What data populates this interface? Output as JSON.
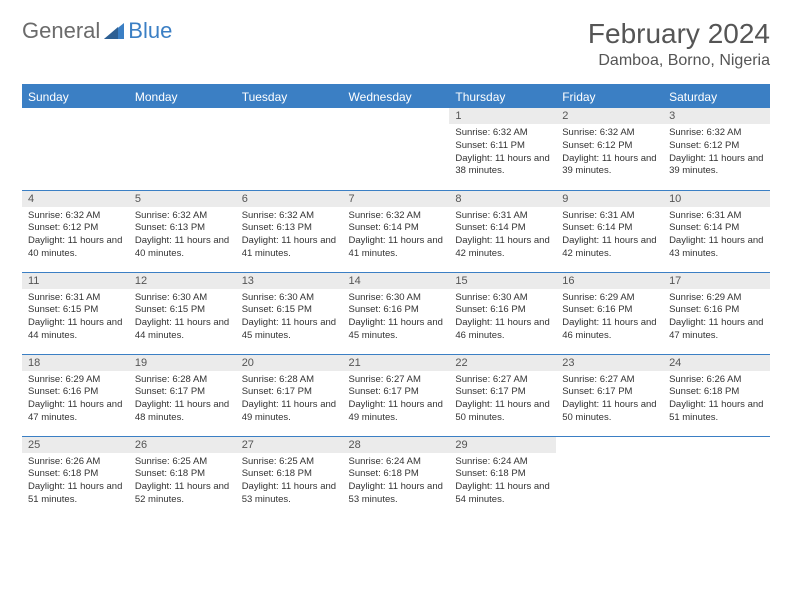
{
  "brand": {
    "part1": "General",
    "part2": "Blue"
  },
  "title": "February 2024",
  "location": "Damboa, Borno, Nigeria",
  "colors": {
    "accent": "#3b7fc4",
    "header_text": "#ffffff",
    "daynum_bg": "#ebebeb",
    "body_text": "#333333",
    "title_text": "#555555"
  },
  "weekdays": [
    "Sunday",
    "Monday",
    "Tuesday",
    "Wednesday",
    "Thursday",
    "Friday",
    "Saturday"
  ],
  "first_weekday_index": 4,
  "days": [
    {
      "n": 1,
      "sunrise": "6:32 AM",
      "sunset": "6:11 PM",
      "daylight": "11 hours and 38 minutes."
    },
    {
      "n": 2,
      "sunrise": "6:32 AM",
      "sunset": "6:12 PM",
      "daylight": "11 hours and 39 minutes."
    },
    {
      "n": 3,
      "sunrise": "6:32 AM",
      "sunset": "6:12 PM",
      "daylight": "11 hours and 39 minutes."
    },
    {
      "n": 4,
      "sunrise": "6:32 AM",
      "sunset": "6:12 PM",
      "daylight": "11 hours and 40 minutes."
    },
    {
      "n": 5,
      "sunrise": "6:32 AM",
      "sunset": "6:13 PM",
      "daylight": "11 hours and 40 minutes."
    },
    {
      "n": 6,
      "sunrise": "6:32 AM",
      "sunset": "6:13 PM",
      "daylight": "11 hours and 41 minutes."
    },
    {
      "n": 7,
      "sunrise": "6:32 AM",
      "sunset": "6:14 PM",
      "daylight": "11 hours and 41 minutes."
    },
    {
      "n": 8,
      "sunrise": "6:31 AM",
      "sunset": "6:14 PM",
      "daylight": "11 hours and 42 minutes."
    },
    {
      "n": 9,
      "sunrise": "6:31 AM",
      "sunset": "6:14 PM",
      "daylight": "11 hours and 42 minutes."
    },
    {
      "n": 10,
      "sunrise": "6:31 AM",
      "sunset": "6:14 PM",
      "daylight": "11 hours and 43 minutes."
    },
    {
      "n": 11,
      "sunrise": "6:31 AM",
      "sunset": "6:15 PM",
      "daylight": "11 hours and 44 minutes."
    },
    {
      "n": 12,
      "sunrise": "6:30 AM",
      "sunset": "6:15 PM",
      "daylight": "11 hours and 44 minutes."
    },
    {
      "n": 13,
      "sunrise": "6:30 AM",
      "sunset": "6:15 PM",
      "daylight": "11 hours and 45 minutes."
    },
    {
      "n": 14,
      "sunrise": "6:30 AM",
      "sunset": "6:16 PM",
      "daylight": "11 hours and 45 minutes."
    },
    {
      "n": 15,
      "sunrise": "6:30 AM",
      "sunset": "6:16 PM",
      "daylight": "11 hours and 46 minutes."
    },
    {
      "n": 16,
      "sunrise": "6:29 AM",
      "sunset": "6:16 PM",
      "daylight": "11 hours and 46 minutes."
    },
    {
      "n": 17,
      "sunrise": "6:29 AM",
      "sunset": "6:16 PM",
      "daylight": "11 hours and 47 minutes."
    },
    {
      "n": 18,
      "sunrise": "6:29 AM",
      "sunset": "6:16 PM",
      "daylight": "11 hours and 47 minutes."
    },
    {
      "n": 19,
      "sunrise": "6:28 AM",
      "sunset": "6:17 PM",
      "daylight": "11 hours and 48 minutes."
    },
    {
      "n": 20,
      "sunrise": "6:28 AM",
      "sunset": "6:17 PM",
      "daylight": "11 hours and 49 minutes."
    },
    {
      "n": 21,
      "sunrise": "6:27 AM",
      "sunset": "6:17 PM",
      "daylight": "11 hours and 49 minutes."
    },
    {
      "n": 22,
      "sunrise": "6:27 AM",
      "sunset": "6:17 PM",
      "daylight": "11 hours and 50 minutes."
    },
    {
      "n": 23,
      "sunrise": "6:27 AM",
      "sunset": "6:17 PM",
      "daylight": "11 hours and 50 minutes."
    },
    {
      "n": 24,
      "sunrise": "6:26 AM",
      "sunset": "6:18 PM",
      "daylight": "11 hours and 51 minutes."
    },
    {
      "n": 25,
      "sunrise": "6:26 AM",
      "sunset": "6:18 PM",
      "daylight": "11 hours and 51 minutes."
    },
    {
      "n": 26,
      "sunrise": "6:25 AM",
      "sunset": "6:18 PM",
      "daylight": "11 hours and 52 minutes."
    },
    {
      "n": 27,
      "sunrise": "6:25 AM",
      "sunset": "6:18 PM",
      "daylight": "11 hours and 53 minutes."
    },
    {
      "n": 28,
      "sunrise": "6:24 AM",
      "sunset": "6:18 PM",
      "daylight": "11 hours and 53 minutes."
    },
    {
      "n": 29,
      "sunrise": "6:24 AM",
      "sunset": "6:18 PM",
      "daylight": "11 hours and 54 minutes."
    }
  ],
  "labels": {
    "sunrise": "Sunrise:",
    "sunset": "Sunset:",
    "daylight": "Daylight:"
  }
}
